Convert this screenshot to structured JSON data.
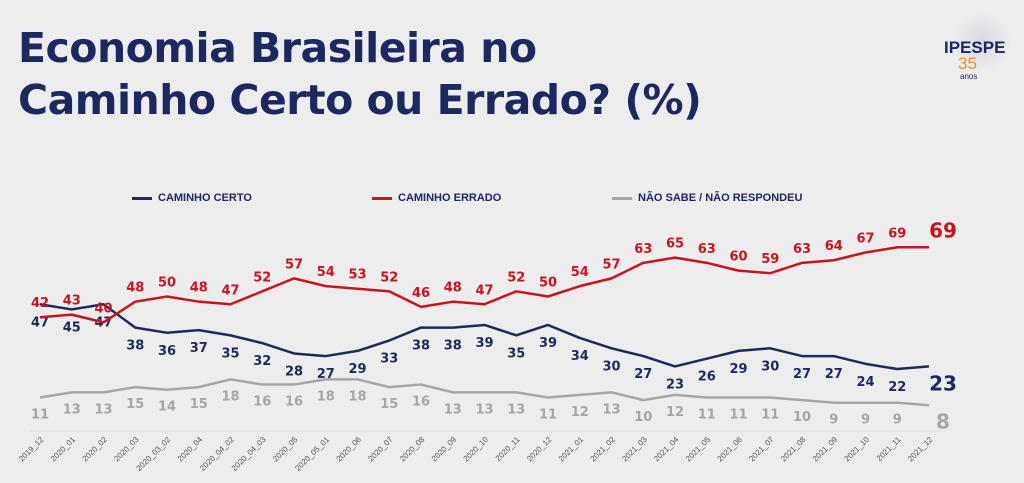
{
  "title_line1": "Economia Brasileira no",
  "title_line2": "Caminho Certo ou Errado? (%)",
  "logo": {
    "name": "IPESPE",
    "number": "35",
    "sub": "anos"
  },
  "chart_data": {
    "type": "line",
    "title": "Economia Brasileira no Caminho Certo ou Errado? (%)",
    "x": [
      "2019_12",
      "2020_01",
      "2020_02",
      "2020_03",
      "2020_03_02",
      "2020_04",
      "2020_04_02",
      "2020_04_03",
      "2020_05",
      "2020_05_01",
      "2020_06",
      "2020_07",
      "2020_08",
      "2020_09",
      "2020_10",
      "2020_11",
      "2020_12",
      "2021_01",
      "2021_02",
      "2021_03",
      "2021_04",
      "2021_05",
      "2021_06",
      "2021_07",
      "2021_08",
      "2021_09",
      "2021_10",
      "2021_11",
      "2021_12"
    ],
    "series": [
      {
        "name": "CAMINHO CERTO",
        "color": "#1e2a5e",
        "label_pos": "below",
        "values": [
          47,
          45,
          47,
          38,
          36,
          37,
          35,
          32,
          28,
          27,
          29,
          33,
          38,
          38,
          39,
          35,
          39,
          34,
          30,
          27,
          23,
          26,
          29,
          30,
          27,
          27,
          24,
          22,
          23
        ]
      },
      {
        "name": "CAMINHO ERRADO",
        "color": "#c8141e",
        "label_pos": "above",
        "values": [
          42,
          43,
          40,
          48,
          50,
          48,
          47,
          52,
          57,
          54,
          53,
          52,
          46,
          48,
          47,
          52,
          50,
          54,
          57,
          63,
          65,
          63,
          60,
          59,
          63,
          64,
          67,
          69,
          69
        ]
      },
      {
        "name": "NÃO SABE / NÃO RESPONDEU",
        "color": "#a6a6a6",
        "label_pos": "below",
        "values": [
          11,
          13,
          13,
          15,
          14,
          15,
          18,
          16,
          16,
          18,
          18,
          15,
          16,
          13,
          13,
          13,
          11,
          12,
          13,
          10,
          12,
          11,
          11,
          11,
          10,
          9,
          9,
          9,
          8
        ]
      }
    ],
    "ylim": [
      0,
      75
    ],
    "grid": false,
    "legend": "top"
  }
}
